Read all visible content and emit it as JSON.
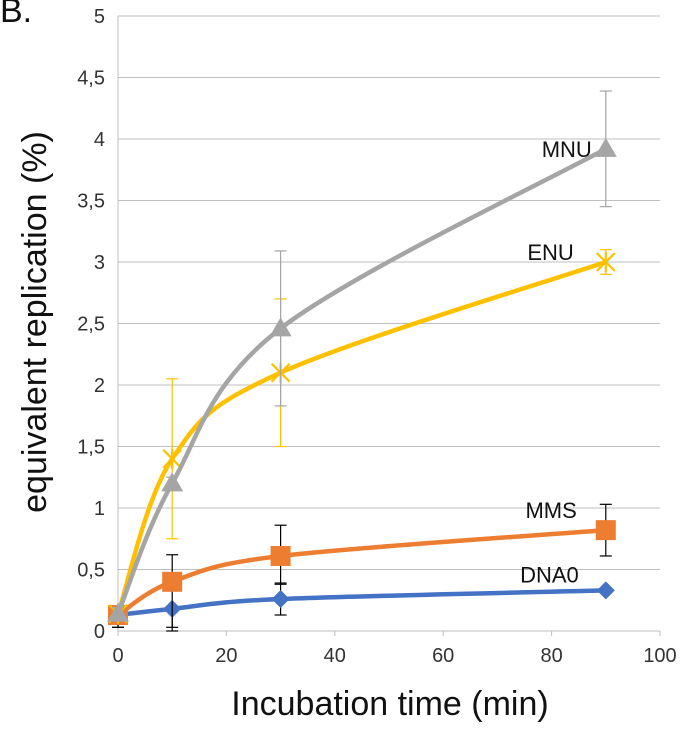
{
  "chart_data": {
    "type": "line",
    "panel_label": "B.",
    "xlabel": "Incubation time (min)",
    "ylabel": "equivalent replication (%)",
    "xlim": [
      0,
      100
    ],
    "ylim": [
      0,
      5
    ],
    "x_ticks": [
      "0",
      "20",
      "40",
      "60",
      "80",
      "100"
    ],
    "y_ticks": [
      "0",
      "0,5",
      "1",
      "1,5",
      "2",
      "2,5",
      "3",
      "3,5",
      "4",
      "4,5",
      "5"
    ],
    "x_tick_values": [
      0,
      20,
      40,
      60,
      80,
      100
    ],
    "y_tick_values": [
      0,
      0.5,
      1,
      1.5,
      2,
      2.5,
      3,
      3.5,
      4,
      4.5,
      5
    ],
    "grid": "horizontal",
    "series": [
      {
        "name": "DNA0",
        "color": "#4472C4",
        "marker": "diamond",
        "x": [
          0,
          10,
          30,
          90
        ],
        "y": [
          0.13,
          0.18,
          0.26,
          0.33
        ],
        "err_low": [
          0.1,
          0.15,
          0.13,
          0.02
        ],
        "err_high": [
          0.02,
          0.02,
          0.13,
          0.02
        ]
      },
      {
        "name": "MMS",
        "color": "#ED7D31",
        "marker": "square",
        "x": [
          0,
          10,
          30,
          90
        ],
        "y": [
          0.13,
          0.4,
          0.61,
          0.82
        ],
        "err_low": [
          0.1,
          0.4,
          0.23,
          0.21
        ],
        "err_high": [
          0.02,
          0.22,
          0.25,
          0.21
        ]
      },
      {
        "name": "ENU",
        "color": "#FFC000",
        "marker": "star",
        "x": [
          0,
          10,
          30,
          90
        ],
        "y": [
          0.14,
          1.4,
          2.1,
          3.0
        ],
        "err_low": [
          0.05,
          0.65,
          0.6,
          0.1
        ],
        "err_high": [
          0.05,
          0.65,
          0.6,
          0.1
        ]
      },
      {
        "name": "MNU",
        "color": "#A5A5A5",
        "marker": "triangle",
        "x": [
          0,
          10,
          30,
          90
        ],
        "y": [
          0.14,
          1.2,
          2.46,
          3.92
        ],
        "err_low": [
          0.05,
          0.05,
          0.63,
          0.47
        ],
        "err_high": [
          0.05,
          0.05,
          0.63,
          0.47
        ]
      }
    ]
  }
}
